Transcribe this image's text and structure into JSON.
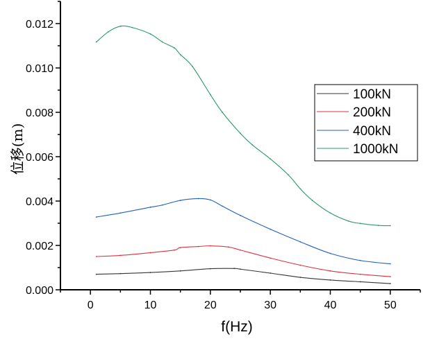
{
  "chart_data": {
    "type": "line",
    "title": "",
    "xlabel": "f(Hz)",
    "ylabel": "位移(m)",
    "xlim": [
      -5,
      55
    ],
    "ylim": [
      0,
      0.013
    ],
    "xticks": [
      "0",
      "10",
      "20",
      "30",
      "40",
      "50"
    ],
    "yticks": [
      "0.000",
      "0.002",
      "0.004",
      "0.006",
      "0.008",
      "0.010",
      "0.012"
    ],
    "grid": false,
    "legend_position": "right",
    "series": [
      {
        "name": "100kN",
        "color": "#333333",
        "x": [
          1,
          5,
          10,
          15,
          20,
          24,
          25,
          30,
          35,
          40,
          45,
          50
        ],
        "y": [
          0.0007,
          0.00073,
          0.00078,
          0.00085,
          0.00095,
          0.00096,
          0.00093,
          0.00075,
          0.00056,
          0.00044,
          0.00036,
          0.00028
        ]
      },
      {
        "name": "200kN",
        "color": "#e0303c",
        "x": [
          1,
          5,
          10,
          14,
          15,
          18,
          20,
          23,
          25,
          30,
          35,
          40,
          45,
          50
        ],
        "y": [
          0.0015,
          0.00155,
          0.00167,
          0.00179,
          0.0019,
          0.00195,
          0.00198,
          0.00193,
          0.00179,
          0.00143,
          0.00111,
          0.00085,
          0.0007,
          0.00059
        ]
      },
      {
        "name": "400kN",
        "color": "#2060c0",
        "x": [
          1,
          5,
          10,
          12,
          15,
          18,
          20,
          22,
          25,
          30,
          35,
          40,
          45,
          50
        ],
        "y": [
          0.00328,
          0.00346,
          0.00372,
          0.00382,
          0.00403,
          0.00411,
          0.00405,
          0.00377,
          0.00335,
          0.00273,
          0.00216,
          0.00164,
          0.00132,
          0.00117
        ]
      },
      {
        "name": "1000kN",
        "color": "#2a9a6a",
        "x": [
          1,
          3,
          5,
          7,
          10,
          12,
          14,
          15,
          17,
          20,
          22,
          25,
          27,
          30,
          33,
          35,
          37,
          40,
          43,
          45,
          48,
          50
        ],
        "y": [
          0.01117,
          0.01163,
          0.01188,
          0.01182,
          0.01153,
          0.01117,
          0.0109,
          0.0106,
          0.01007,
          0.0088,
          0.008,
          0.00705,
          0.00653,
          0.0059,
          0.00518,
          0.00455,
          0.00403,
          0.00346,
          0.0031,
          0.00299,
          0.0029,
          0.00289
        ]
      }
    ]
  }
}
